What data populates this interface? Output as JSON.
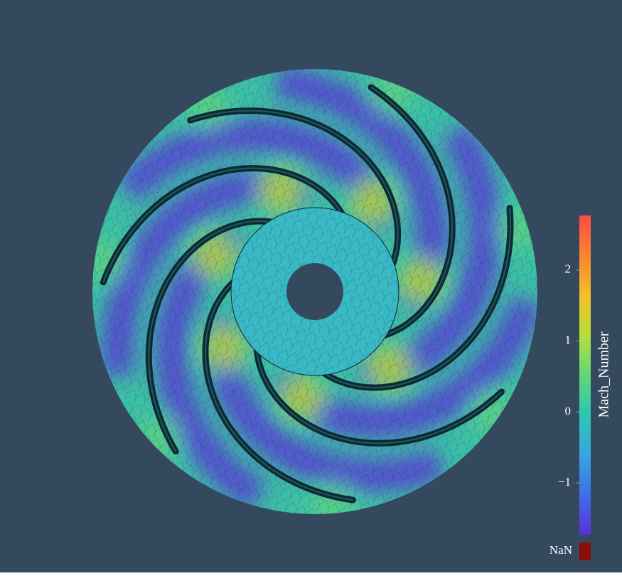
{
  "colorbar": {
    "title": "Mach_Number",
    "range": [
      -1.73,
      2.77
    ],
    "ticks": [
      {
        "value": -1,
        "label": "−1"
      },
      0,
      1,
      2
    ],
    "colormap": [
      "#5a2fd8",
      "#3f6fe6",
      "#37a6e0",
      "#2ec6b0",
      "#62d67a",
      "#b8de3a",
      "#f2c028",
      "#f7862e",
      "#ff4a46"
    ],
    "nan_label": "NaN",
    "nan_color": "#8b0a0a"
  },
  "background": "#34495e"
}
